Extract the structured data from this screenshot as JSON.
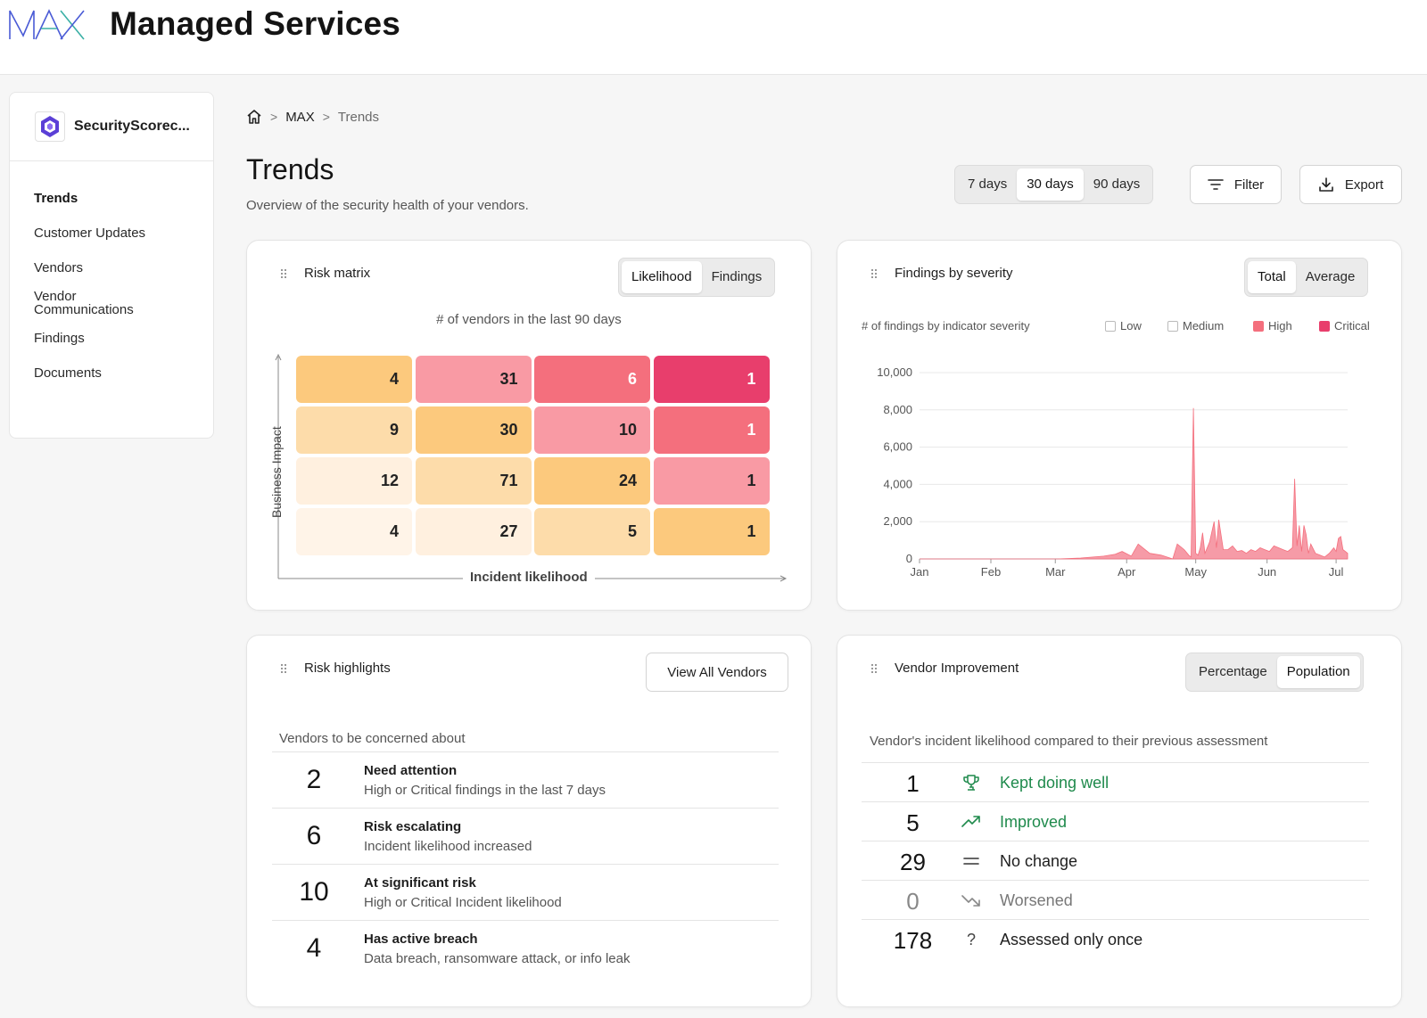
{
  "header": {
    "logo_text": "MAX",
    "title": "Managed Services"
  },
  "sidebar": {
    "org_name": "SecurityScorec...",
    "items": [
      {
        "label": "Trends",
        "active": true
      },
      {
        "label": "Customer Updates"
      },
      {
        "label": "Vendors"
      },
      {
        "label": "Vendor Communications"
      },
      {
        "label": "Findings"
      },
      {
        "label": "Documents"
      }
    ]
  },
  "breadcrumb": {
    "root": "MAX",
    "current": "Trends"
  },
  "page": {
    "title": "Trends",
    "subtitle": "Overview of the security health of your vendors."
  },
  "toolbar": {
    "ranges": [
      "7 days",
      "30 days",
      "90 days"
    ],
    "selected_range": "30 days",
    "filter_label": "Filter",
    "export_label": "Export"
  },
  "risk_matrix": {
    "title": "Risk matrix",
    "tabs": [
      "Likelihood",
      "Findings"
    ],
    "selected_tab": "Likelihood",
    "subtitle": "# of vendors in the last 90 days",
    "y_label": "Business Impact",
    "x_label": "Incident likelihood",
    "rows": [
      [
        4,
        31,
        6,
        1
      ],
      [
        9,
        30,
        10,
        1
      ],
      [
        12,
        71,
        24,
        1
      ],
      [
        4,
        27,
        5,
        1
      ]
    ],
    "colors": [
      [
        "#fcc97d",
        "#f99aa4",
        "#f46f7d",
        "#e83e6c"
      ],
      [
        "#fddcaa",
        "#fcc97d",
        "#f99aa4",
        "#f46f7d"
      ],
      [
        "#fff0df",
        "#fddcaa",
        "#fcc97d",
        "#f99aa4"
      ],
      [
        "#fff4e8",
        "#fff0df",
        "#fddcaa",
        "#fcc97d"
      ]
    ]
  },
  "findings": {
    "title": "Findings by severity",
    "tabs": [
      "Total",
      "Average"
    ],
    "selected_tab": "Total",
    "subtitle": "# of findings by indicator severity",
    "legend": [
      {
        "label": "Low",
        "color": "#ffffff"
      },
      {
        "label": "Medium",
        "color": "#ffffff"
      },
      {
        "label": "High",
        "color": "#f46f7d"
      },
      {
        "label": "Critical",
        "color": "#e83e6c"
      }
    ],
    "chart_data": {
      "type": "area",
      "y_ticks": [
        "10,000",
        "8,000",
        "6,000",
        "4,000",
        "2,000",
        "0"
      ],
      "x_ticks": [
        "Jan",
        "Feb",
        "Mar",
        "Apr",
        "May",
        "Jun",
        "Jul"
      ],
      "ylim": [
        0,
        10000
      ],
      "xlim": [
        0,
        186
      ],
      "x": [
        0,
        30,
        60,
        70,
        80,
        85,
        88,
        92,
        95,
        100,
        105,
        110,
        112,
        115,
        117,
        118,
        119,
        120,
        121,
        122,
        123,
        124,
        126,
        128,
        129,
        130,
        132,
        134,
        136,
        138,
        140,
        142,
        144,
        146,
        148,
        150,
        152,
        154,
        156,
        158,
        160,
        162,
        163,
        164,
        165,
        166,
        167,
        168,
        169,
        170,
        172,
        174,
        176,
        178,
        180,
        181,
        182,
        183,
        184,
        185,
        186
      ],
      "y": [
        0,
        0,
        0,
        50,
        150,
        250,
        400,
        150,
        800,
        300,
        200,
        0,
        800,
        500,
        200,
        100,
        8100,
        300,
        200,
        600,
        1400,
        300,
        900,
        2000,
        600,
        2100,
        500,
        500,
        700,
        400,
        450,
        300,
        500,
        400,
        600,
        500,
        400,
        700,
        600,
        500,
        400,
        600,
        4300,
        700,
        1800,
        400,
        1800,
        1300,
        300,
        800,
        300,
        200,
        100,
        300,
        600,
        400,
        1100,
        1200,
        500,
        400,
        300
      ]
    }
  },
  "highlights": {
    "title": "Risk highlights",
    "button_label": "View All Vendors",
    "subtitle": "Vendors to be concerned about",
    "rows": [
      {
        "count": "2",
        "name": "Need attention",
        "desc": "High or Critical findings in the last 7 days"
      },
      {
        "count": "6",
        "name": "Risk escalating",
        "desc": "Incident likelihood increased"
      },
      {
        "count": "10",
        "name": "At significant risk",
        "desc": "High or Critical Incident likelihood"
      },
      {
        "count": "4",
        "name": "Has active breach",
        "desc": "Data breach, ransomware attack, or info leak"
      }
    ]
  },
  "improvement": {
    "title": "Vendor Improvement",
    "tabs": [
      "Percentage",
      "Population"
    ],
    "selected_tab": "Population",
    "subtitle": "Vendor's incident likelihood compared to their previous assessment",
    "rows": [
      {
        "count": "1",
        "label": "Kept doing well",
        "icon": "trophy-icon",
        "color": "#1f8a4c",
        "count_color": "#141414"
      },
      {
        "count": "5",
        "label": "Improved",
        "icon": "trend-up-icon",
        "color": "#1f8a4c",
        "count_color": "#141414"
      },
      {
        "count": "29",
        "label": "No change",
        "icon": "equals-icon",
        "color": "#1e1e1e",
        "count_color": "#141414"
      },
      {
        "count": "0",
        "label": "Worsened",
        "icon": "trend-down-icon",
        "color": "#777777",
        "count_color": "#888888"
      },
      {
        "count": "178",
        "label": "Assessed only once",
        "icon": "question-icon",
        "color": "#1e1e1e",
        "count_color": "#141414"
      }
    ]
  }
}
